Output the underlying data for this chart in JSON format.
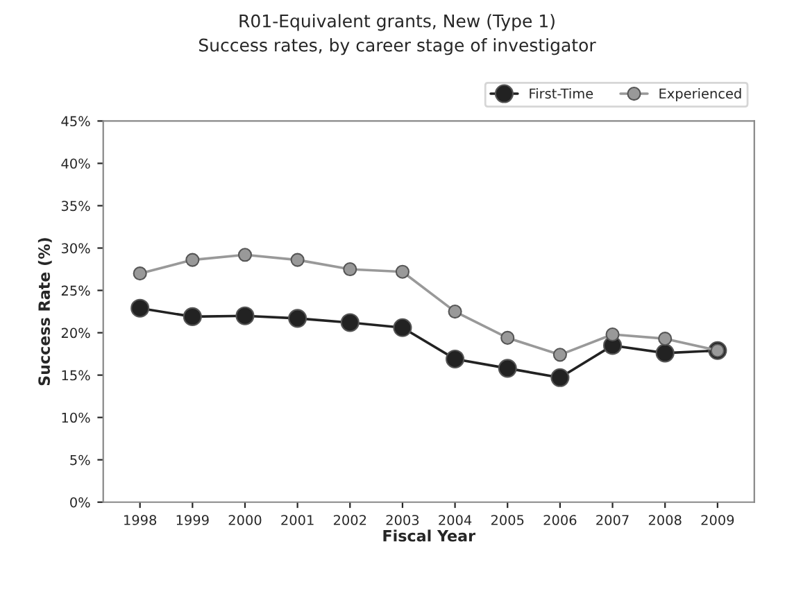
{
  "chart_data": {
    "type": "line",
    "title": "R01-Equivalent grants, New (Type 1)",
    "subtitle": "Success rates, by career stage of investigator",
    "xlabel": "Fiscal Year",
    "ylabel": "Success Rate (%)",
    "categories": [
      "1998",
      "1999",
      "2000",
      "2001",
      "2002",
      "2003",
      "2004",
      "2005",
      "2006",
      "2007",
      "2008",
      "2009"
    ],
    "series": [
      {
        "name": "First-Time",
        "color": "#222222",
        "values": [
          22.9,
          21.9,
          22.0,
          21.7,
          21.2,
          20.6,
          16.9,
          15.8,
          14.7,
          18.5,
          17.6,
          17.9
        ]
      },
      {
        "name": "Experienced",
        "color": "#999999",
        "values": [
          27.0,
          28.6,
          29.2,
          28.6,
          27.5,
          27.2,
          22.5,
          19.4,
          17.4,
          19.8,
          19.3,
          17.9
        ]
      }
    ],
    "ylim": [
      0,
      45
    ],
    "yticks": [
      {
        "value": 0,
        "label": "0%"
      },
      {
        "value": 5,
        "label": "5%"
      },
      {
        "value": 10,
        "label": "10%"
      },
      {
        "value": 15,
        "label": "15%"
      },
      {
        "value": 20,
        "label": "20%"
      },
      {
        "value": 25,
        "label": "25%"
      },
      {
        "value": 30,
        "label": "30%"
      },
      {
        "value": 35,
        "label": "35%"
      },
      {
        "value": 40,
        "label": "40%"
      },
      {
        "value": 45,
        "label": "45%"
      }
    ],
    "grid": false,
    "legend": "top right",
    "marker": "circle",
    "line_style": "solid"
  }
}
